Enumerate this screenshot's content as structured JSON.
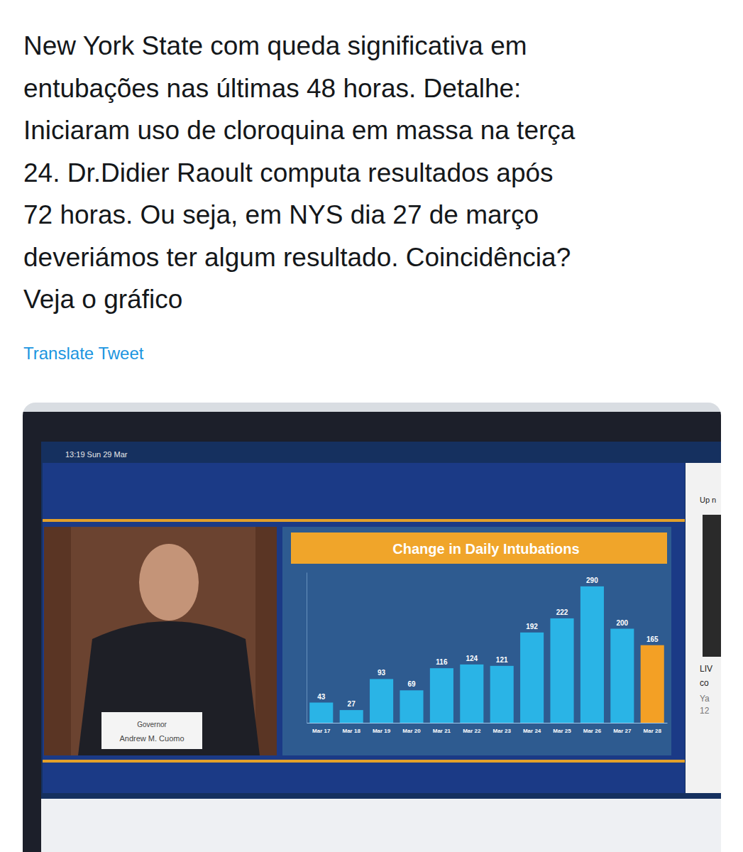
{
  "tweet": {
    "lines": [
      "New York State com queda significativa em",
      "entubações nas últimas 48 horas. Detalhe:",
      "Iniciaram uso de cloroquina em massa na terça",
      "24. Dr.Didier Raoult computa resultados após",
      "72 horas. Ou seja, em NYS dia 27 de março",
      "deveriámos ter algum resultado. Coincidência?",
      "Veja o gráfico"
    ],
    "translate": "Translate Tweet"
  },
  "screen": {
    "status": "13:19  Sun 29 Mar",
    "nameplate": [
      "Governor",
      "Andrew M. Cuomo"
    ],
    "sidebar": [
      "Up n",
      "LIV",
      "co",
      "Ya",
      "12"
    ]
  },
  "chart_data": {
    "type": "bar",
    "title": "Change in Daily Intubations",
    "categories": [
      "Mar 17",
      "Mar 18",
      "Mar 19",
      "Mar 20",
      "Mar 21",
      "Mar 22",
      "Mar 23",
      "Mar 24",
      "Mar 25",
      "Mar 26",
      "Mar 27",
      "Mar 28"
    ],
    "values": [
      43,
      27,
      93,
      69,
      116,
      124,
      121,
      192,
      222,
      290,
      200,
      165
    ],
    "colors": [
      "#2ab4e6",
      "#2ab4e6",
      "#2ab4e6",
      "#2ab4e6",
      "#2ab4e6",
      "#2ab4e6",
      "#2ab4e6",
      "#2ab4e6",
      "#2ab4e6",
      "#2ab4e6",
      "#2ab4e6",
      "#f3a025"
    ],
    "ylim": [
      0,
      320
    ],
    "data_labels": true,
    "tick_labels": "x",
    "grid": false
  }
}
